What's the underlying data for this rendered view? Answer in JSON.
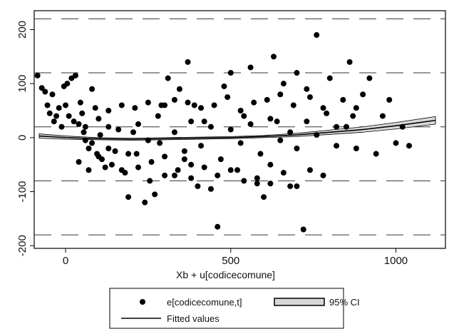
{
  "chart_data": {
    "type": "scatter",
    "title": "",
    "xlabel": "Xb + u[codicecomune]",
    "ylabel": "",
    "xlim": [
      -95,
      1150
    ],
    "ylim": [
      -205,
      235
    ],
    "xticks": [
      0,
      500,
      1000
    ],
    "yticks": [
      -200,
      -100,
      0,
      100,
      200
    ],
    "dashed_gridlines_y": [
      -180,
      -80,
      20,
      120,
      220
    ],
    "grid": true,
    "legend_position": "bottom",
    "legend": [
      "e[codicecomune,t]",
      "95% CI",
      "Fitted values"
    ],
    "colors": {
      "points": "#000000",
      "fit_line": "#000000",
      "ci_band": "#d8d8d8",
      "background": "#ffffff"
    },
    "series": [
      {
        "name": "e[codicecomune,t]",
        "type": "scatter",
        "x": [
          -85,
          -72,
          -62,
          -55,
          -48,
          -40,
          -35,
          -28,
          -20,
          -12,
          -5,
          0,
          5,
          10,
          18,
          25,
          30,
          40,
          45,
          55,
          60,
          70,
          80,
          95,
          105,
          110,
          120,
          130,
          150,
          170,
          190,
          205,
          215,
          240,
          255,
          270,
          285,
          300,
          310,
          330,
          345,
          360,
          370,
          380,
          390,
          400,
          420,
          440,
          460,
          480,
          500,
          520,
          540,
          560,
          580,
          600,
          620,
          630,
          640,
          660,
          680,
          700,
          720,
          740,
          760,
          780,
          800,
          820,
          840,
          860,
          870,
          880,
          900,
          920,
          940,
          960,
          980,
          1000,
          1020,
          1040,
          60,
          80,
          100,
          130,
          160,
          190,
          220,
          250,
          280,
          300,
          330,
          360,
          380,
          410,
          440,
          470,
          500,
          530,
          560,
          590,
          620,
          650,
          680,
          700,
          730,
          760,
          790,
          820,
          850,
          880,
          40,
          70,
          100,
          140,
          180,
          220,
          260,
          300,
          340,
          380,
          420,
          460,
          500,
          540,
          580,
          620,
          660,
          700,
          740,
          780,
          50,
          90,
          130,
          170,
          210,
          250,
          290,
          330,
          370,
          410,
          450,
          490,
          530,
          570,
          610,
          650,
          690,
          730
        ],
        "y": [
          115,
          92,
          85,
          60,
          45,
          80,
          30,
          40,
          55,
          20,
          95,
          60,
          100,
          40,
          110,
          30,
          115,
          25,
          65,
          10,
          -5,
          -20,
          90,
          -30,
          5,
          -40,
          -55,
          20,
          -25,
          -60,
          -110,
          10,
          -30,
          -120,
          -80,
          -105,
          -10,
          60,
          110,
          -70,
          90,
          -40,
          140,
          -50,
          60,
          -90,
          30,
          -95,
          -165,
          95,
          120,
          -60,
          40,
          130,
          -85,
          -110,
          -50,
          150,
          30,
          100,
          -90,
          120,
          -170,
          75,
          190,
          55,
          110,
          20,
          70,
          140,
          40,
          -20,
          80,
          110,
          -30,
          40,
          70,
          -10,
          20,
          -15,
          20,
          -10,
          35,
          -20,
          15,
          -30,
          25,
          -5,
          40,
          -35,
          10,
          -25,
          30,
          -15,
          20,
          -40,
          15,
          -10,
          25,
          -30,
          35,
          -5,
          10,
          -20,
          30,
          5,
          45,
          -15,
          20,
          55,
          -45,
          -60,
          -35,
          -50,
          -65,
          -55,
          -45,
          -70,
          -60,
          -75,
          -55,
          -70,
          -60,
          -80,
          -75,
          -85,
          -65,
          -90,
          -60,
          -70,
          45,
          55,
          50,
          60,
          55,
          65,
          60,
          70,
          65,
          55,
          60,
          75,
          50,
          65,
          70,
          80,
          60,
          90
        ]
      },
      {
        "name": "Fitted values",
        "type": "line",
        "x": [
          -80,
          0,
          100,
          200,
          300,
          400,
          500,
          600,
          700,
          800,
          900,
          1000,
          1120
        ],
        "y": [
          3,
          0,
          -2,
          -3,
          -2,
          -1,
          0,
          2,
          5,
          10,
          15,
          22,
          32
        ]
      },
      {
        "name": "95% CI",
        "type": "area",
        "x": [
          -80,
          0,
          100,
          200,
          300,
          400,
          500,
          600,
          700,
          800,
          900,
          1000,
          1120
        ],
        "low": [
          -1,
          -3,
          -4,
          -5,
          -4,
          -3,
          -2,
          0,
          2,
          6,
          10,
          16,
          25
        ],
        "high": [
          7,
          3,
          0,
          -1,
          0,
          1,
          2,
          4,
          8,
          14,
          20,
          28,
          39
        ]
      }
    ]
  }
}
